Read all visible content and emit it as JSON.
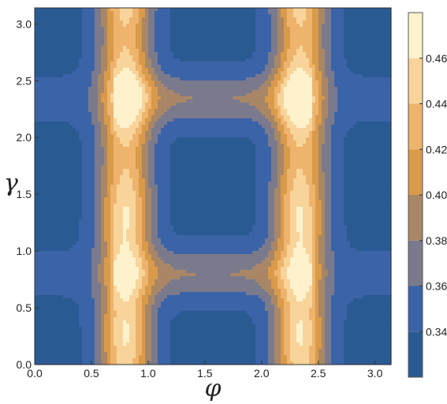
{
  "chart_data": {
    "type": "heatmap",
    "subtype": "filled-contour",
    "title": "",
    "xlabel": "φ",
    "ylabel": "γ",
    "xlim": [
      0,
      3.14159
    ],
    "ylim": [
      0,
      3.14159
    ],
    "xticks": [
      0.0,
      0.5,
      1.0,
      1.5,
      2.0,
      2.5,
      3.0
    ],
    "xtick_labels": [
      "0.0",
      "0.5",
      "1.0",
      "1.5",
      "2.0",
      "2.5",
      "3.0"
    ],
    "yticks": [
      0.0,
      0.5,
      1.0,
      1.5,
      2.0,
      2.5,
      3.0
    ],
    "ytick_labels": [
      "0.0",
      "0.5",
      "1.0",
      "1.5",
      "2.0",
      "2.5",
      "3.0"
    ],
    "grid": false,
    "colorbar": {
      "placement": "right",
      "range": [
        0.32,
        0.48
      ],
      "ticks": [
        0.34,
        0.36,
        0.38,
        0.4,
        0.42,
        0.44,
        0.46
      ],
      "tick_labels": [
        "0.34",
        "0.36",
        "0.38",
        "0.40",
        "0.42",
        "0.44",
        "0.46"
      ],
      "levels": [
        0.32,
        0.34,
        0.36,
        0.38,
        0.4,
        0.42,
        0.44,
        0.46,
        0.48
      ],
      "colors": [
        "#2a5a92",
        "#3b63a8",
        "#7b7a8c",
        "#a98766",
        "#d99a4a",
        "#eeb46d",
        "#f8d49a",
        "#fdf2cc"
      ]
    },
    "description_of_field": "Periodic pattern: low values (~0.33-0.36) at phi near 0, pi/2 and pi; high values (~0.44-0.47) along ridges near phi ~ 0.8 and ~ 2.35 and gamma ~ 0.8 and ~ 2.35"
  }
}
